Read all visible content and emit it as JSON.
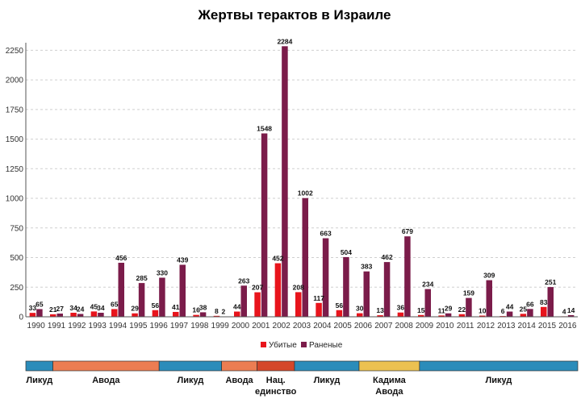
{
  "chart_data": {
    "type": "bar",
    "title": "Жертвы терактов в Израиле",
    "xlabel": "",
    "ylabel": "",
    "ylim": [
      0,
      2300
    ],
    "yticks": [
      0,
      250,
      500,
      750,
      1000,
      1250,
      1500,
      1750,
      2000,
      2250
    ],
    "grid": true,
    "legend_position": "bottom-center",
    "categories": [
      "1990",
      "1991",
      "1992",
      "1993",
      "1994",
      "1995",
      "1996",
      "1997",
      "1998",
      "1999",
      "2000",
      "2001",
      "2002",
      "2003",
      "2004",
      "2005",
      "2006",
      "2007",
      "2008",
      "2009",
      "2010",
      "2011",
      "2012",
      "2013",
      "2014",
      "2015",
      "2016"
    ],
    "series": [
      {
        "name": "Убитые",
        "color": "#e8141c",
        "values": [
          33,
          21,
          34,
          45,
          65,
          29,
          56,
          41,
          16,
          8,
          44,
          207,
          452,
          208,
          117,
          56,
          30,
          13,
          36,
          15,
          11,
          22,
          10,
          6,
          25,
          83,
          4
        ]
      },
      {
        "name": "Раненые",
        "color": "#7b1c4a",
        "values": [
          65,
          27,
          24,
          34,
          456,
          285,
          330,
          439,
          38,
          2,
          263,
          1548,
          2284,
          1002,
          663,
          504,
          383,
          462,
          679,
          234,
          29,
          159,
          309,
          44,
          66,
          251,
          14
        ]
      }
    ],
    "government_periods": [
      {
        "label": "Ликуд",
        "start": 1990,
        "end": 1991.3,
        "color": "#2b8cba"
      },
      {
        "label": "Авода",
        "start": 1991.3,
        "end": 1996.4,
        "color": "#ec7d52"
      },
      {
        "label": "Ликуд",
        "start": 1996.4,
        "end": 1999.4,
        "color": "#2b8cba"
      },
      {
        "label": "Авода",
        "start": 1999.4,
        "end": 2001.1,
        "color": "#ec7d52"
      },
      {
        "label": "Нац. единство",
        "start": 2001.1,
        "end": 2002.9,
        "color": "#d4472a"
      },
      {
        "label": "Ликуд",
        "start": 2002.9,
        "end": 2006.0,
        "color": "#2b8cba"
      },
      {
        "label": "Кадима Авода",
        "start": 2006.0,
        "end": 2008.9,
        "color": "#ecc151"
      },
      {
        "label": "Ликуд",
        "start": 2008.9,
        "end": 2016.5,
        "color": "#2b8cba"
      }
    ]
  }
}
